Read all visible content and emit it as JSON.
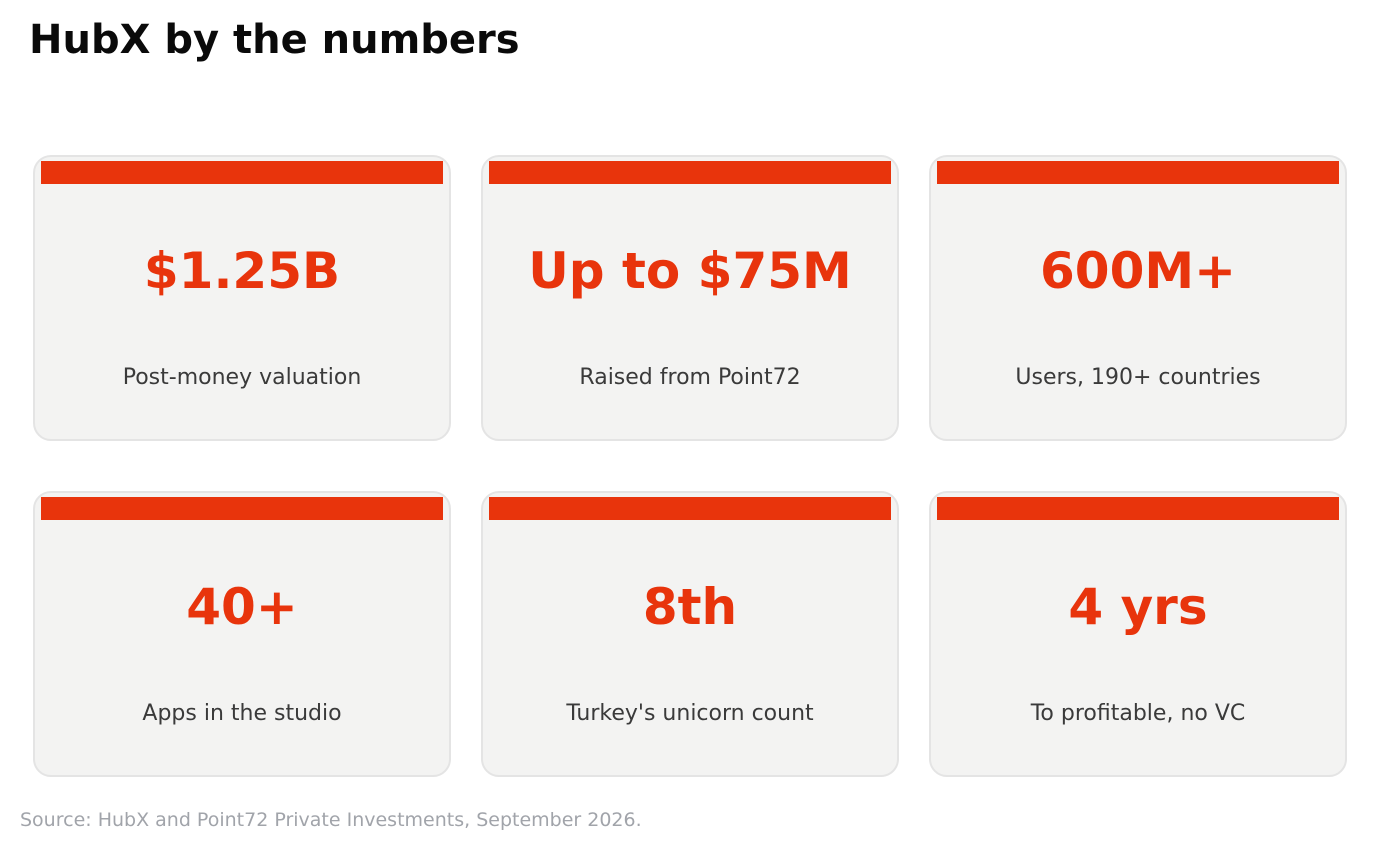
{
  "title": "HubX by the numbers",
  "accent_color": "#e8340c",
  "cards": [
    {
      "value": "$1.25B",
      "label": "Post-money valuation"
    },
    {
      "value": "Up to $75M",
      "label": "Raised from Point72"
    },
    {
      "value": "600M+",
      "label": "Users, 190+ countries"
    },
    {
      "value": "40+",
      "label": "Apps in the studio"
    },
    {
      "value": "8th",
      "label": "Turkey's unicorn count"
    },
    {
      "value": "4 yrs",
      "label": "To profitable, no VC"
    }
  ],
  "source": "Source: HubX and Point72 Private Investments, September 2026."
}
